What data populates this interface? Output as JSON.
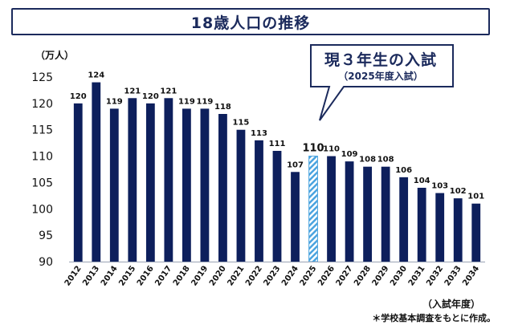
{
  "title": "18歳人口の推移",
  "callout": {
    "line1": "現３年生の入試",
    "line2": "（2025年度入試）"
  },
  "note": "＊学校基本調査をもとに作成。",
  "colors": {
    "bar": "#0d1f5c",
    "highlight": "#4aa3df",
    "text": "#111111",
    "frame": "#1b2a5c"
  },
  "chart_data": {
    "type": "bar",
    "ylabel": "（万人）",
    "xlabel": "（入試年度）",
    "ylim": [
      90,
      125
    ],
    "yticks": [
      90,
      95,
      100,
      105,
      110,
      115,
      120,
      125
    ],
    "grid": false,
    "highlight_category": "2025",
    "categories": [
      "2012",
      "2013",
      "2014",
      "2015",
      "2016",
      "2017",
      "2018",
      "2019",
      "2020",
      "2021",
      "2022",
      "2023",
      "2024",
      "2025",
      "2026",
      "2027",
      "2028",
      "2029",
      "2030",
      "2031",
      "2032",
      "2033",
      "2034"
    ],
    "values": [
      120,
      124,
      119,
      121,
      120,
      121,
      119,
      119,
      118,
      115,
      113,
      111,
      107,
      110,
      110,
      109,
      108,
      108,
      106,
      104,
      103,
      102,
      101
    ]
  }
}
